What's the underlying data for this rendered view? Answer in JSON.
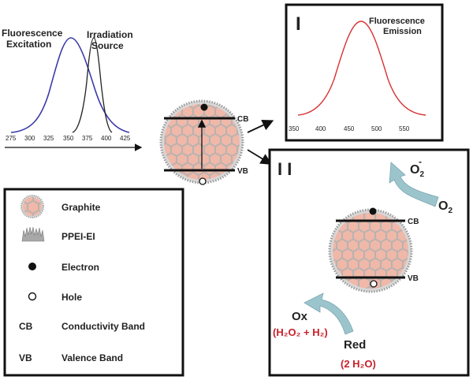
{
  "excitation_plot": {
    "excitation_label_1": "Fluorescence",
    "excitation_label_2": "Excitation",
    "source_label_1": "Irradiation",
    "source_label_2": "Source",
    "ticks": [
      "275",
      "300",
      "325",
      "350",
      "375",
      "400",
      "425"
    ],
    "excitation_color": "#3a3aa8",
    "source_color": "#222222"
  },
  "emission_panel": {
    "panel_label": "I",
    "title_1": "Fluorescence",
    "title_2": "Emission",
    "ticks": [
      "350",
      "400",
      "450",
      "500",
      "550"
    ],
    "curve_color": "#d83030"
  },
  "quantum_dot": {
    "cb": "CB",
    "vb": "VB"
  },
  "redox_panel": {
    "panel_label": "I I",
    "o2_radical": "O",
    "o2_radical_sub": "2",
    "o2_radical_sup": "-",
    "o2": "O",
    "o2_sub": "2",
    "cb": "CB",
    "vb": "VB",
    "ox": "Ox",
    "ox_products": "(H₂O₂ + H₂)",
    "red": "Red",
    "red_products": "(2 H₂O)",
    "accent_color": "#c8202a",
    "arrow_color": "#9cc4cc"
  },
  "legend": {
    "items": [
      {
        "symbol": "graphite-icon",
        "label": "Graphite"
      },
      {
        "symbol": "ppei-icon",
        "label": "PPEI-EI"
      },
      {
        "symbol": "electron-icon",
        "label": "Electron"
      },
      {
        "symbol": "hole-icon",
        "label": "Hole"
      },
      {
        "symbol": "CB",
        "label": "Conductivity Band"
      },
      {
        "symbol": "VB",
        "label": "Valence Band"
      }
    ]
  }
}
